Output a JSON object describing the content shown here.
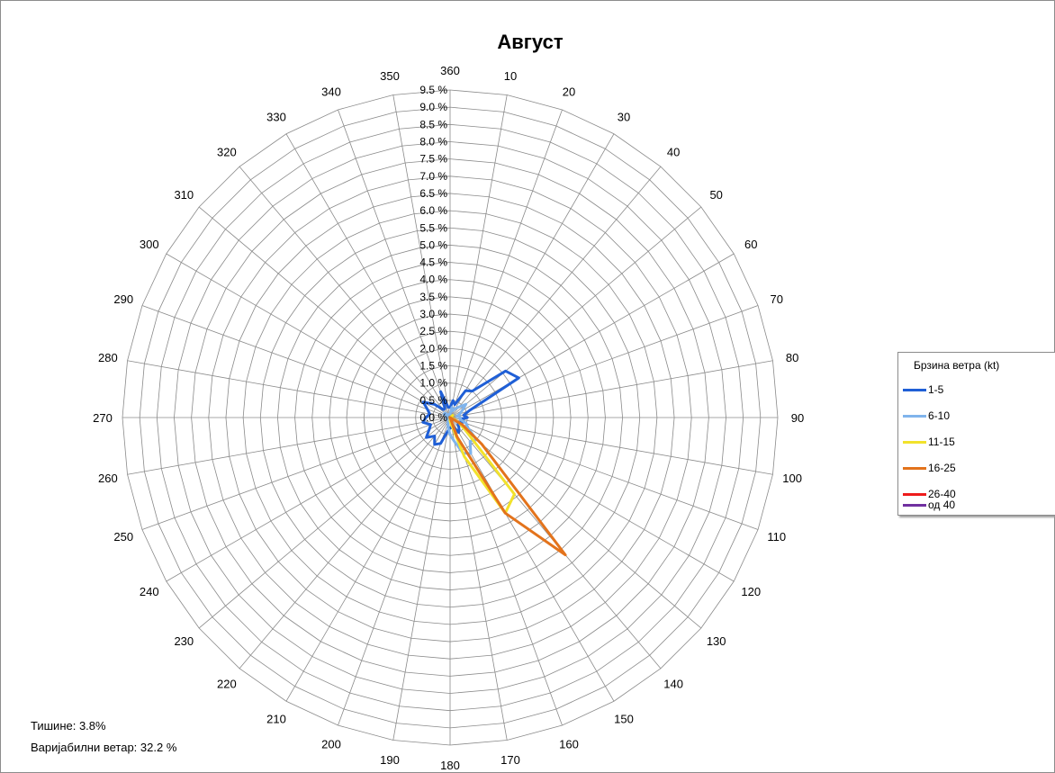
{
  "chart_data": {
    "type": "radar",
    "title": "Август",
    "directions": [
      360,
      10,
      20,
      30,
      40,
      50,
      60,
      70,
      80,
      90,
      100,
      110,
      120,
      130,
      140,
      150,
      160,
      170,
      180,
      190,
      200,
      210,
      220,
      230,
      240,
      250,
      260,
      270,
      280,
      290,
      300,
      310,
      320,
      330,
      340,
      350
    ],
    "radial_ticks": [
      "0.0 %",
      "0.5 %",
      "1.0 %",
      "1.5 %",
      "2.0 %",
      "2.5 %",
      "3.0 %",
      "3.5 %",
      "4.0 %",
      "4.5 %",
      "5.0 %",
      "5.5 %",
      "6.0 %",
      "6.5 %",
      "7.0 %",
      "7.5 %",
      "8.0 %",
      "8.5 %",
      "9.0 %",
      "9.5 %"
    ],
    "rlim": [
      0,
      9.5
    ],
    "grid": true,
    "legend_position": "right",
    "legend_title": "Брзина ветра (kt)",
    "series": [
      {
        "name": "1-5",
        "color": "#1f5fd6",
        "values": [
          0.3,
          0.5,
          0.4,
          0.9,
          1.0,
          2.1,
          2.3,
          0.6,
          0.4,
          0.5,
          0.3,
          0.4,
          0.3,
          0.3,
          0.4,
          0.5,
          0.3,
          0.3,
          0.3,
          0.4,
          0.8,
          0.9,
          0.7,
          0.9,
          0.7,
          0.6,
          0.8,
          0.7,
          0.6,
          0.7,
          0.9,
          0.6,
          0.3,
          0.3,
          0.8,
          0.3
        ]
      },
      {
        "name": "6-10",
        "color": "#80b4ec",
        "values": [
          0.1,
          0.3,
          0.2,
          0.3,
          0.4,
          0.6,
          0.4,
          0.3,
          0.2,
          0.3,
          0.3,
          0.5,
          0.6,
          1.0,
          0.9,
          1.2,
          1.1,
          0.7,
          0.5,
          0.3,
          0.2,
          0.1,
          0.1,
          0.1,
          0.1,
          0.1,
          0.1,
          0.1,
          0.1,
          0.1,
          0.2,
          0.2,
          0.1,
          0.1,
          0.1,
          0.1
        ]
      },
      {
        "name": "11-15",
        "color": "#f2e22b",
        "values": [
          0.0,
          0.0,
          0.0,
          0.0,
          0.0,
          0.1,
          0.0,
          0.0,
          0.0,
          0.0,
          0.0,
          0.1,
          0.3,
          0.6,
          2.9,
          3.2,
          1.2,
          0.2,
          0.1,
          0.0,
          0.0,
          0.0,
          0.0,
          0.0,
          0.0,
          0.0,
          0.0,
          0.0,
          0.0,
          0.0,
          0.0,
          0.0,
          0.0,
          0.0,
          0.0,
          0.0
        ]
      },
      {
        "name": "16-25",
        "color": "#e3731c",
        "values": [
          0.0,
          0.0,
          0.0,
          0.0,
          0.0,
          0.0,
          0.0,
          0.0,
          0.0,
          0.0,
          0.0,
          0.0,
          0.4,
          1.2,
          5.2,
          3.2,
          0.6,
          0.0,
          0.0,
          0.0,
          0.0,
          0.0,
          0.0,
          0.0,
          0.0,
          0.0,
          0.0,
          0.0,
          0.0,
          0.0,
          0.0,
          0.0,
          0.0,
          0.0,
          0.0,
          0.0
        ]
      },
      {
        "name": "26-40",
        "color": "#ee1c1c",
        "values": [
          0,
          0,
          0,
          0,
          0,
          0,
          0,
          0,
          0,
          0,
          0,
          0,
          0,
          0,
          0,
          0,
          0,
          0,
          0,
          0,
          0,
          0,
          0,
          0,
          0,
          0,
          0,
          0,
          0,
          0,
          0,
          0,
          0,
          0,
          0,
          0
        ]
      },
      {
        "name": "од 40",
        "color": "#7030a0",
        "values": [
          0,
          0,
          0,
          0,
          0,
          0,
          0,
          0,
          0,
          0,
          0,
          0,
          0,
          0,
          0,
          0,
          0,
          0,
          0,
          0,
          0,
          0,
          0,
          0,
          0,
          0,
          0,
          0,
          0,
          0,
          0,
          0,
          0,
          0,
          0,
          0
        ]
      }
    ]
  },
  "notes": {
    "calm": "Тишине:  3.8%",
    "variable": "Варијабилни ветар: 32.2 %"
  }
}
